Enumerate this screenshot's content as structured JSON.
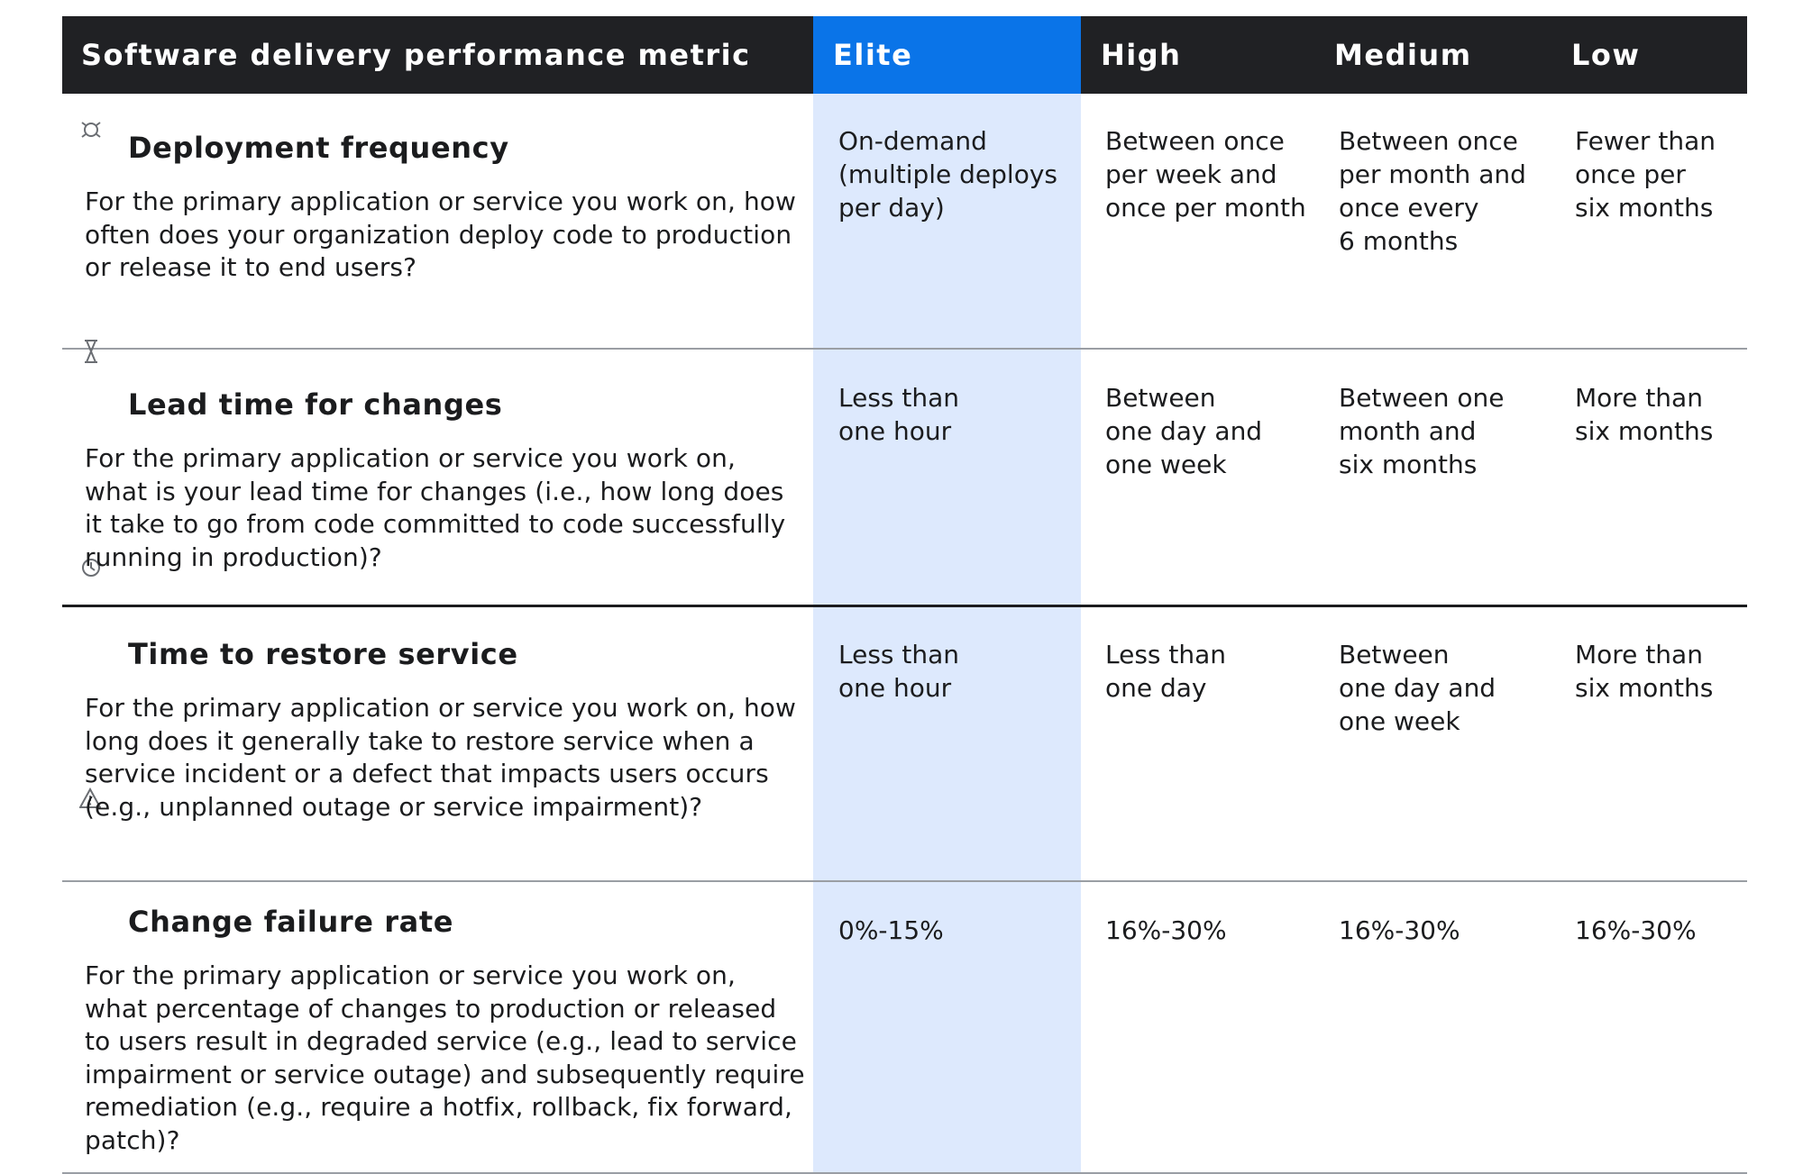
{
  "header": {
    "metric": "Software delivery performance metric",
    "elite": "Elite",
    "high": "High",
    "medium": "Medium",
    "low": "Low"
  },
  "rows": [
    {
      "icon": "target-icon",
      "title": "Deployment frequency",
      "description": "For the primary application or service you work on, how often does your organization deploy code to production or release it to end users?",
      "elite": "On-demand\n(multiple deploys\nper day)",
      "high": "Between once\nper week and\nonce per month",
      "medium": "Between once\nper month and\nonce every\n6 months",
      "low": "Fewer than\nonce per\nsix months"
    },
    {
      "icon": "hourglass-icon",
      "title": "Lead time for changes",
      "description": "For the primary application or service you work on, what is your lead time for changes (i.e., how long does it take to go from code committed to code successfully running in production)?",
      "elite": "Less than\none hour",
      "high": "Between\none day and\none week",
      "medium": "Between one\nmonth and\nsix months",
      "low": "More than\nsix months"
    },
    {
      "icon": "clock-icon",
      "title": "Time to restore service",
      "description": "For the primary application or service you work on, how long does it generally take to restore service when a service incident or a defect that impacts users occurs (e.g., unplanned outage or service impairment)?",
      "elite": "Less than\none hour",
      "high": "Less than\none day",
      "medium": "Between\none day and\none week",
      "low": "More than\nsix months"
    },
    {
      "icon": "warning-icon",
      "title": "Change failure rate",
      "description": "For the primary application or service you work on, what percentage of changes to production or released to users result in degraded service (e.g., lead to service impairment or service outage) and subsequently require remediation (e.g., require a hotfix, rollback, fix forward, patch)?",
      "elite": "0%-15%",
      "high": "16%-30%",
      "medium": "16%-30%",
      "low": "16%-30%"
    }
  ]
}
